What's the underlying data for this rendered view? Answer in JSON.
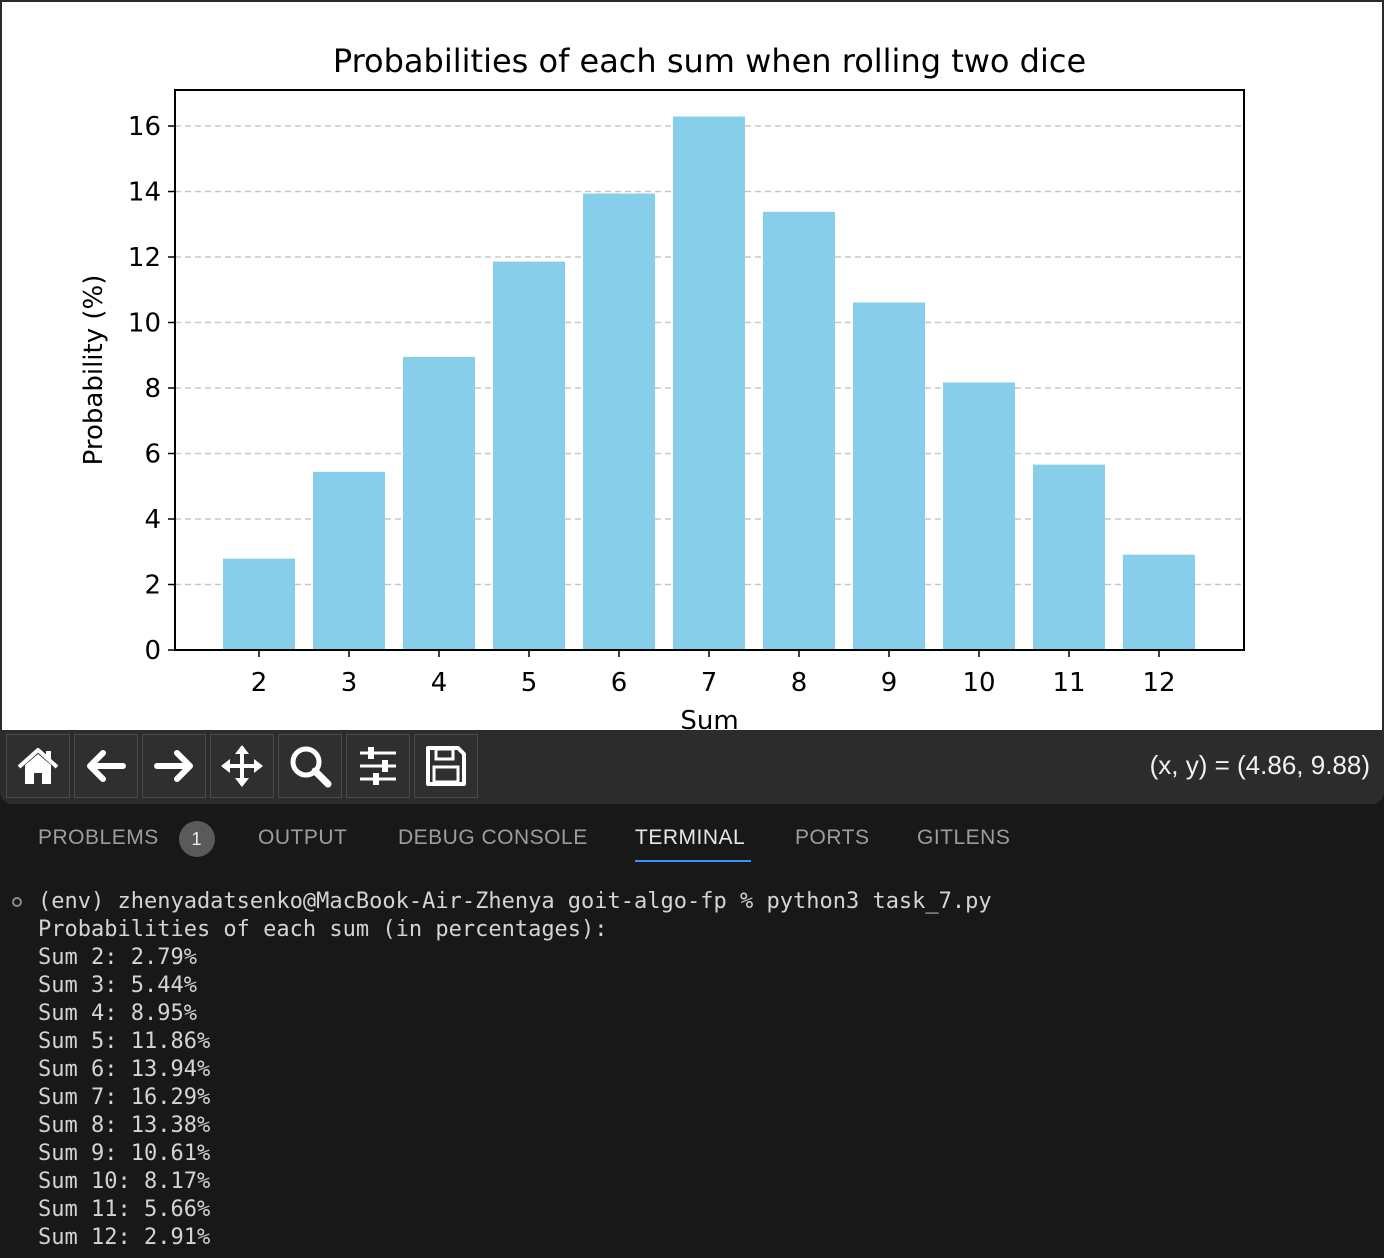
{
  "figure": {
    "toolbar": {
      "buttons": [
        {
          "name": "home",
          "icon": "home-icon"
        },
        {
          "name": "back",
          "icon": "arrow-left-icon"
        },
        {
          "name": "forward",
          "icon": "arrow-right-icon"
        },
        {
          "name": "pan",
          "icon": "move-icon"
        },
        {
          "name": "zoom",
          "icon": "magnifier-icon"
        },
        {
          "name": "configure-subplots",
          "icon": "sliders-icon"
        },
        {
          "name": "save",
          "icon": "save-icon"
        }
      ],
      "coordinates": "(x, y) = (4.86, 9.88)"
    }
  },
  "chart_data": {
    "type": "bar",
    "title": "Probabilities of each sum when rolling two dice",
    "xlabel": "Sum",
    "ylabel": "Probability (%)",
    "categories": [
      "2",
      "3",
      "4",
      "5",
      "6",
      "7",
      "8",
      "9",
      "10",
      "11",
      "12"
    ],
    "values": [
      2.79,
      5.44,
      8.95,
      11.86,
      13.94,
      16.29,
      13.38,
      10.61,
      8.17,
      5.66,
      2.91
    ],
    "ylim": [
      0,
      17.1
    ],
    "yticks": [
      0,
      2,
      4,
      6,
      8,
      10,
      12,
      14,
      16
    ],
    "grid": "y-dashed",
    "bar_color": "#87ceeb",
    "grid_color": "#c8c8c8"
  },
  "panel": {
    "tabs": [
      {
        "label": "PROBLEMS",
        "badge": "1",
        "active": false
      },
      {
        "label": "OUTPUT",
        "active": false
      },
      {
        "label": "DEBUG CONSOLE",
        "active": false
      },
      {
        "label": "TERMINAL",
        "active": true
      },
      {
        "label": "PORTS",
        "active": false
      },
      {
        "label": "GITLENS",
        "active": false
      }
    ],
    "accent_color": "#3794ff"
  },
  "terminal": {
    "command": "(env) zhenyadatsenko@MacBook-Air-Zhenya goit-algo-fp % python3 task_7.py",
    "output": [
      "Probabilities of each sum (in percentages):",
      "Sum 2: 2.79%",
      "Sum 3: 5.44%",
      "Sum 4: 8.95%",
      "Sum 5: 11.86%",
      "Sum 6: 13.94%",
      "Sum 7: 16.29%",
      "Sum 8: 13.38%",
      "Sum 9: 10.61%",
      "Sum 10: 8.17%",
      "Sum 11: 5.66%",
      "Sum 12: 2.91%"
    ]
  }
}
